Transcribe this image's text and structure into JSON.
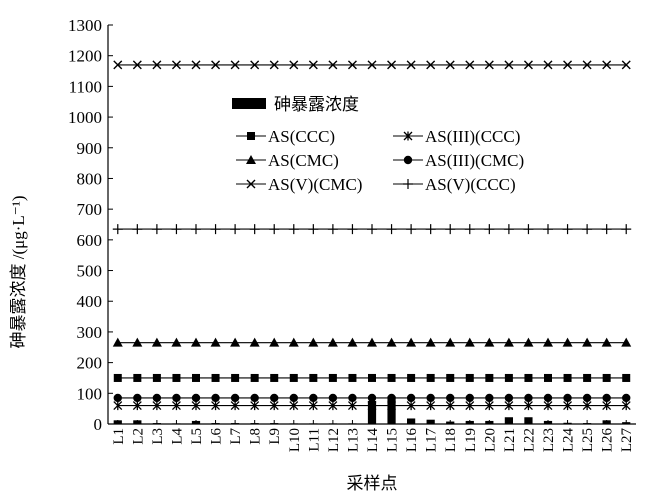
{
  "chart_data": {
    "type": "bar",
    "xlabel": "采样点",
    "ylabel": "砷暴露浓度 /(μg·L⁻¹)",
    "ylim": [
      0,
      1300
    ],
    "yticks": [
      0,
      100,
      200,
      300,
      400,
      500,
      600,
      700,
      800,
      900,
      1000,
      1100,
      1200,
      1300
    ],
    "categories": [
      "L1",
      "L2",
      "L3",
      "L4",
      "L5",
      "L6",
      "L7",
      "L8",
      "L9",
      "L10",
      "L11",
      "L12",
      "L13",
      "L14",
      "L15",
      "L16",
      "L17",
      "L18",
      "L19",
      "L20",
      "L21",
      "L22",
      "L23",
      "L24",
      "L25",
      "L26",
      "L27"
    ],
    "bar_series": {
      "name": "砷暴露浓度",
      "values": [
        12,
        12,
        3,
        2,
        10,
        3,
        3,
        3,
        3,
        2,
        2,
        2,
        2,
        75,
        90,
        18,
        14,
        8,
        10,
        10,
        22,
        22,
        10,
        4,
        3,
        12,
        6
      ]
    },
    "line_series": [
      {
        "name": "AS(CCC)",
        "marker": "square",
        "value": 150
      },
      {
        "name": "AS(III)(CCC)",
        "marker": "asterisk",
        "value": 60
      },
      {
        "name": "AS(CMC)",
        "marker": "triangle",
        "value": 265
      },
      {
        "name": "AS(III)(CMC)",
        "marker": "circle",
        "value": 85
      },
      {
        "name": "AS(V)(CMC)",
        "marker": "x",
        "value": 1170
      },
      {
        "name": "AS(V)(CCC)",
        "marker": "plus",
        "value": 635
      }
    ],
    "legend_placement": "upper-middle",
    "grid": false
  }
}
